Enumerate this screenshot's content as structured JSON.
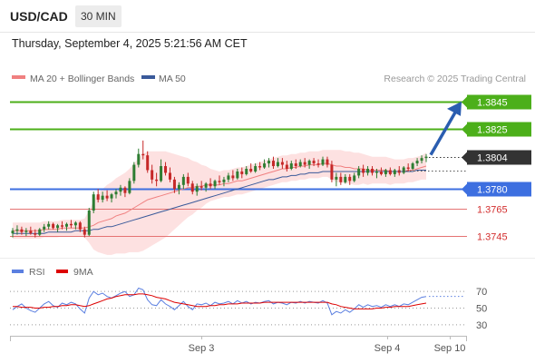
{
  "header": {
    "symbol": "USD/CAD",
    "timeframe": "30 MIN"
  },
  "datetime": "Thursday, September 4, 2025 5:21:56 AM CET",
  "legend": {
    "ma20": "MA 20 + Bollinger Bands",
    "ma50": "MA 50",
    "copyright": "Research © 2025 Trading Central"
  },
  "colors": {
    "up": "#2e7d32",
    "down": "#c62828",
    "green_level": "#4caf1a",
    "blue_level": "#3d6fe0",
    "red_level": "#e57373",
    "price_box": "#333333",
    "ma20": "#f08080",
    "ma50": "#3a5a9a",
    "band_fill": "#fde1e1",
    "rsi": "#5b7fe0",
    "rsi_ma": "#dd0000"
  },
  "chart_data": [
    {
      "type": "candlestick",
      "y_range": [
        1.3737,
        1.3853
      ],
      "x_ticks": [
        "Sep 3",
        "Sep 4",
        "Sep 10"
      ],
      "current_price": {
        "label": "1.3804",
        "value": 1.3804
      },
      "levels": [
        {
          "label": "1.3845",
          "value": 1.3845,
          "kind": "resistance",
          "color": "green",
          "boxed": true
        },
        {
          "label": "1.3825",
          "value": 1.3825,
          "kind": "resistance",
          "color": "green",
          "boxed": true
        },
        {
          "label": "1.3780",
          "value": 1.378,
          "kind": "pivot",
          "color": "blue",
          "boxed": true
        },
        {
          "label": "1.3765",
          "value": 1.3765,
          "kind": "support",
          "color": "red",
          "boxed": false
        },
        {
          "label": "1.3745",
          "value": 1.3745,
          "kind": "support",
          "color": "red",
          "boxed": false
        }
      ],
      "target_arrow": {
        "from": 1.3804,
        "to": 1.3845
      },
      "candles": [
        [
          1.3747,
          1.3751,
          1.3744,
          1.3749
        ],
        [
          1.3749,
          1.3753,
          1.3746,
          1.375
        ],
        [
          1.375,
          1.3752,
          1.3746,
          1.3748
        ],
        [
          1.3748,
          1.3751,
          1.3745,
          1.3749
        ],
        [
          1.3749,
          1.3752,
          1.3746,
          1.3747
        ],
        [
          1.3747,
          1.375,
          1.3744,
          1.3746
        ],
        [
          1.3746,
          1.3751,
          1.3745,
          1.375
        ],
        [
          1.375,
          1.3754,
          1.3748,
          1.3752
        ],
        [
          1.3752,
          1.3756,
          1.375,
          1.3754
        ],
        [
          1.3754,
          1.3755,
          1.375,
          1.3751
        ],
        [
          1.3751,
          1.3754,
          1.3748,
          1.3753
        ],
        [
          1.3753,
          1.3756,
          1.375,
          1.3752
        ],
        [
          1.3752,
          1.3755,
          1.3749,
          1.3754
        ],
        [
          1.3754,
          1.3757,
          1.3751,
          1.3753
        ],
        [
          1.3753,
          1.3756,
          1.375,
          1.3755
        ],
        [
          1.3755,
          1.3756,
          1.3748,
          1.375
        ],
        [
          1.375,
          1.3752,
          1.3744,
          1.3746
        ],
        [
          1.3746,
          1.3766,
          1.3745,
          1.3764
        ],
        [
          1.3764,
          1.3778,
          1.3762,
          1.3776
        ],
        [
          1.3776,
          1.378,
          1.377,
          1.3772
        ],
        [
          1.3772,
          1.3778,
          1.377,
          1.3775
        ],
        [
          1.3775,
          1.3779,
          1.3771,
          1.3773
        ],
        [
          1.3773,
          1.3777,
          1.377,
          1.3776
        ],
        [
          1.3776,
          1.378,
          1.3773,
          1.3778
        ],
        [
          1.3778,
          1.3783,
          1.3775,
          1.3781
        ],
        [
          1.3781,
          1.3782,
          1.3774,
          1.3777
        ],
        [
          1.3777,
          1.3788,
          1.3776,
          1.3786
        ],
        [
          1.3786,
          1.38,
          1.3784,
          1.3798
        ],
        [
          1.3798,
          1.381,
          1.3796,
          1.3806
        ],
        [
          1.3806,
          1.3816,
          1.3802,
          1.3805
        ],
        [
          1.3805,
          1.3808,
          1.3792,
          1.3794
        ],
        [
          1.3794,
          1.3798,
          1.3784,
          1.3787
        ],
        [
          1.3787,
          1.3792,
          1.3782,
          1.3786
        ],
        [
          1.3786,
          1.3802,
          1.3785,
          1.3797
        ],
        [
          1.3797,
          1.38,
          1.379,
          1.3792
        ],
        [
          1.3792,
          1.3796,
          1.3785,
          1.3787
        ],
        [
          1.3787,
          1.3789,
          1.3777,
          1.378
        ],
        [
          1.378,
          1.3785,
          1.3776,
          1.3783
        ],
        [
          1.3783,
          1.3791,
          1.378,
          1.3789
        ],
        [
          1.3789,
          1.3792,
          1.3782,
          1.3784
        ],
        [
          1.3784,
          1.3786,
          1.3776,
          1.3778
        ],
        [
          1.3778,
          1.3784,
          1.3775,
          1.3782
        ],
        [
          1.3782,
          1.3786,
          1.3779,
          1.3781
        ],
        [
          1.3781,
          1.3785,
          1.3778,
          1.3784
        ],
        [
          1.3784,
          1.3788,
          1.378,
          1.3782
        ],
        [
          1.3782,
          1.3787,
          1.378,
          1.3786
        ],
        [
          1.3786,
          1.379,
          1.3783,
          1.3785
        ],
        [
          1.3785,
          1.3789,
          1.3782,
          1.3787
        ],
        [
          1.3787,
          1.3792,
          1.3785,
          1.379
        ],
        [
          1.379,
          1.3794,
          1.3786,
          1.3788
        ],
        [
          1.3788,
          1.3795,
          1.3787,
          1.3793
        ],
        [
          1.3793,
          1.3796,
          1.3788,
          1.3791
        ],
        [
          1.3791,
          1.3797,
          1.379,
          1.3795
        ],
        [
          1.3795,
          1.3799,
          1.3792,
          1.3793
        ],
        [
          1.3793,
          1.3799,
          1.3792,
          1.3797
        ],
        [
          1.3797,
          1.38,
          1.3794,
          1.3796
        ],
        [
          1.3796,
          1.3802,
          1.3795,
          1.3799
        ],
        [
          1.3799,
          1.3803,
          1.3796,
          1.3801
        ],
        [
          1.3801,
          1.3804,
          1.3795,
          1.3797
        ],
        [
          1.3797,
          1.3803,
          1.3796,
          1.38
        ],
        [
          1.38,
          1.3803,
          1.3795,
          1.3798
        ],
        [
          1.3798,
          1.3801,
          1.3793,
          1.3795
        ],
        [
          1.3795,
          1.3801,
          1.3794,
          1.3799
        ],
        [
          1.3799,
          1.3802,
          1.3795,
          1.3797
        ],
        [
          1.3797,
          1.3802,
          1.3796,
          1.38
        ],
        [
          1.38,
          1.3803,
          1.3796,
          1.3798
        ],
        [
          1.3798,
          1.3802,
          1.3795,
          1.3801
        ],
        [
          1.3801,
          1.3803,
          1.3797,
          1.3799
        ],
        [
          1.3799,
          1.3802,
          1.3796,
          1.3798
        ],
        [
          1.3798,
          1.3804,
          1.3797,
          1.3802
        ],
        [
          1.3802,
          1.3804,
          1.3796,
          1.3798
        ],
        [
          1.3798,
          1.3801,
          1.3785,
          1.3787
        ],
        [
          1.3787,
          1.3792,
          1.3782,
          1.3789
        ],
        [
          1.3789,
          1.3792,
          1.3783,
          1.3785
        ],
        [
          1.3785,
          1.3791,
          1.3784,
          1.3789
        ],
        [
          1.3789,
          1.3791,
          1.3783,
          1.3786
        ],
        [
          1.3786,
          1.3792,
          1.3785,
          1.379
        ],
        [
          1.379,
          1.3797,
          1.3788,
          1.3795
        ],
        [
          1.3795,
          1.3798,
          1.3789,
          1.3792
        ],
        [
          1.3792,
          1.3797,
          1.379,
          1.3795
        ],
        [
          1.3795,
          1.3797,
          1.379,
          1.3792
        ],
        [
          1.3792,
          1.3795,
          1.3788,
          1.3793
        ],
        [
          1.3793,
          1.3796,
          1.379,
          1.3791
        ],
        [
          1.3791,
          1.3795,
          1.3789,
          1.3794
        ],
        [
          1.3794,
          1.3796,
          1.379,
          1.3791
        ],
        [
          1.3791,
          1.3795,
          1.3789,
          1.3794
        ],
        [
          1.3794,
          1.3797,
          1.379,
          1.3792
        ],
        [
          1.3792,
          1.3797,
          1.3791,
          1.3796
        ],
        [
          1.3796,
          1.3799,
          1.3793,
          1.3795
        ],
        [
          1.3795,
          1.38,
          1.3794,
          1.3799
        ],
        [
          1.3799,
          1.3803,
          1.3797,
          1.3801
        ],
        [
          1.3801,
          1.3805,
          1.3799,
          1.3803
        ],
        [
          1.3803,
          1.3806,
          1.38,
          1.3804
        ]
      ],
      "ma20": [
        1.3749,
        1.3749,
        1.3749,
        1.3749,
        1.3749,
        1.3749,
        1.3749,
        1.375,
        1.375,
        1.375,
        1.375,
        1.3751,
        1.3751,
        1.3751,
        1.3751,
        1.3751,
        1.3751,
        1.3752,
        1.3753,
        1.3755,
        1.3756,
        1.3757,
        1.3758,
        1.376,
        1.3761,
        1.3762,
        1.3764,
        1.3766,
        1.3768,
        1.377,
        1.3772,
        1.3773,
        1.3774,
        1.3775,
        1.3776,
        1.3777,
        1.3778,
        1.3779,
        1.378,
        1.3781,
        1.3781,
        1.3782,
        1.3782,
        1.3783,
        1.3783,
        1.3783,
        1.3783,
        1.3784,
        1.3784,
        1.3785,
        1.3786,
        1.3786,
        1.3787,
        1.3788,
        1.3789,
        1.379,
        1.3791,
        1.3792,
        1.3793,
        1.3794,
        1.3795,
        1.3795,
        1.3796,
        1.3796,
        1.3797,
        1.3797,
        1.3798,
        1.3798,
        1.3798,
        1.3799,
        1.3799,
        1.3798,
        1.3797,
        1.3797,
        1.3796,
        1.3796,
        1.3795,
        1.3795,
        1.3795,
        1.3794,
        1.3794,
        1.3794,
        1.3794,
        1.3794,
        1.3793,
        1.3793,
        1.3793,
        1.3793,
        1.3794,
        1.3794,
        1.3795,
        1.3796,
        1.3797
      ],
      "ma50": [
        1.3747,
        1.3747,
        1.3747,
        1.3747,
        1.3747,
        1.3747,
        1.3747,
        1.3747,
        1.3748,
        1.3748,
        1.3748,
        1.3748,
        1.3748,
        1.3748,
        1.3749,
        1.3749,
        1.3749,
        1.3749,
        1.375,
        1.375,
        1.3751,
        1.3752,
        1.3752,
        1.3753,
        1.3754,
        1.3755,
        1.3756,
        1.3757,
        1.3758,
        1.3759,
        1.376,
        1.3761,
        1.3762,
        1.3763,
        1.3764,
        1.3765,
        1.3766,
        1.3767,
        1.3768,
        1.3769,
        1.377,
        1.3771,
        1.3772,
        1.3773,
        1.3774,
        1.3775,
        1.3776,
        1.3777,
        1.3778,
        1.3779,
        1.378,
        1.3781,
        1.3782,
        1.3783,
        1.3784,
        1.3785,
        1.3786,
        1.3787,
        1.3787,
        1.3788,
        1.3789,
        1.3789,
        1.379,
        1.379,
        1.3791,
        1.3791,
        1.3792,
        1.3792,
        1.3792,
        1.3793,
        1.3793,
        1.3793,
        1.3793,
        1.3793,
        1.3793,
        1.3793,
        1.3793,
        1.3793,
        1.3793,
        1.3793,
        1.3793,
        1.3793,
        1.3793,
        1.3793,
        1.3793,
        1.3793,
        1.3793,
        1.3793,
        1.3793,
        1.3793,
        1.3794,
        1.3794,
        1.3794
      ],
      "band_width": [
        0.0006,
        0.0006,
        0.0006,
        0.0006,
        0.0006,
        0.0006,
        0.0006,
        0.0006,
        0.0006,
        0.0006,
        0.0006,
        0.0006,
        0.0006,
        0.0006,
        0.0006,
        0.0006,
        0.0007,
        0.0012,
        0.0018,
        0.0022,
        0.0024,
        0.0026,
        0.0027,
        0.0028,
        0.0029,
        0.003,
        0.0031,
        0.0033,
        0.0035,
        0.0036,
        0.0036,
        0.0035,
        0.0034,
        0.0033,
        0.0032,
        0.003,
        0.0028,
        0.0026,
        0.0024,
        0.0022,
        0.002,
        0.0018,
        0.0016,
        0.0014,
        0.0012,
        0.0011,
        0.001,
        0.001,
        0.001,
        0.001,
        0.001,
        0.001,
        0.001,
        0.001,
        0.001,
        0.001,
        0.001,
        0.001,
        0.001,
        0.001,
        0.001,
        0.001,
        0.001,
        0.001,
        0.001,
        0.001,
        0.001,
        0.001,
        0.001,
        0.001,
        0.001,
        0.0011,
        0.0012,
        0.0012,
        0.0012,
        0.0012,
        0.0012,
        0.0012,
        0.0011,
        0.0011,
        0.001,
        0.001,
        0.001,
        0.001,
        0.001,
        0.0009,
        0.0009,
        0.0009,
        0.0009,
        0.0009,
        0.0009,
        0.0009,
        0.001
      ]
    },
    {
      "type": "line",
      "y_range": [
        20,
        80
      ],
      "y_ticks": [
        70,
        50,
        30
      ],
      "series": [
        {
          "name": "RSI",
          "values": [
            48,
            52,
            55,
            50,
            47,
            45,
            50,
            55,
            58,
            53,
            51,
            56,
            54,
            57,
            55,
            49,
            44,
            62,
            70,
            66,
            68,
            64,
            62,
            65,
            68,
            70,
            64,
            66,
            74,
            72,
            60,
            54,
            53,
            60,
            55,
            52,
            48,
            53,
            58,
            52,
            48,
            55,
            54,
            56,
            53,
            57,
            55,
            56,
            58,
            55,
            59,
            56,
            58,
            55,
            57,
            56,
            58,
            59,
            55,
            57,
            56,
            54,
            57,
            56,
            58,
            56,
            58,
            57,
            56,
            59,
            56,
            42,
            46,
            44,
            48,
            45,
            49,
            54,
            51,
            54,
            52,
            53,
            51,
            54,
            52,
            54,
            52,
            55,
            54,
            57,
            60,
            63,
            64
          ]
        },
        {
          "name": "9MA",
          "values": [
            52,
            52,
            51,
            51,
            51,
            50,
            50,
            51,
            51,
            52,
            52,
            53,
            53,
            54,
            54,
            53,
            52,
            53,
            55,
            57,
            59,
            61,
            62,
            64,
            65,
            66,
            66,
            66,
            67,
            67,
            66,
            65,
            63,
            62,
            61,
            59,
            57,
            56,
            55,
            54,
            53,
            52,
            52,
            52,
            53,
            53,
            54,
            54,
            55,
            55,
            55,
            56,
            56,
            56,
            56,
            56,
            57,
            57,
            57,
            57,
            57,
            57,
            57,
            57,
            57,
            57,
            57,
            57,
            57,
            57,
            57,
            55,
            54,
            52,
            51,
            50,
            49,
            49,
            49,
            49,
            49,
            50,
            50,
            51,
            51,
            52,
            52,
            52,
            52,
            53,
            54,
            55,
            56
          ]
        }
      ],
      "guides": [
        70,
        50,
        30
      ]
    }
  ],
  "rsi_legend": {
    "rsi": "RSI",
    "ma": "9MA"
  }
}
